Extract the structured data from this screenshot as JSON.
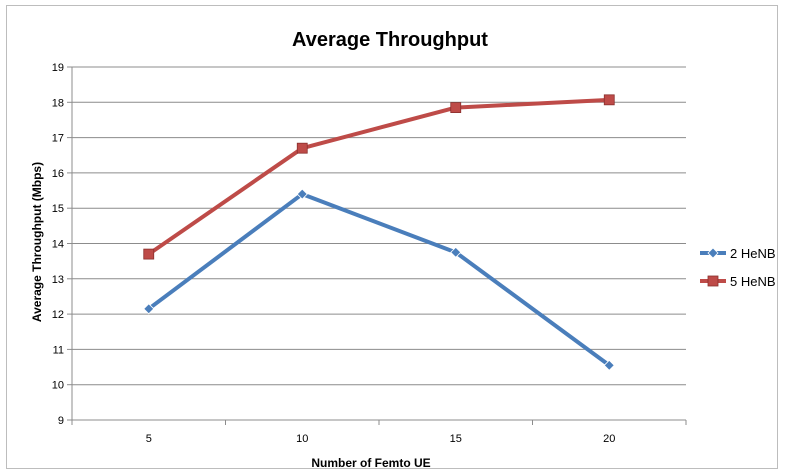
{
  "chart_data": {
    "type": "line",
    "title": "Average Throughput",
    "xlabel": "Number of Femto UE",
    "ylabel": "Average Throughput  (Mbps)",
    "categories": [
      "5",
      "10",
      "15",
      "20"
    ],
    "x": [
      5,
      10,
      15,
      20
    ],
    "ylim": [
      9,
      19
    ],
    "yticks": [
      9,
      10,
      11,
      12,
      13,
      14,
      15,
      16,
      17,
      18,
      19
    ],
    "grid": true,
    "legend": "right",
    "series": [
      {
        "name": "2 HeNB",
        "color": "#4a7ebb",
        "marker": "diamond",
        "values": [
          12.15,
          15.4,
          13.75,
          10.55
        ]
      },
      {
        "name": "5 HeNB",
        "color": "#be4b48",
        "marker": "square",
        "values": [
          13.7,
          16.7,
          17.85,
          18.07
        ]
      }
    ]
  }
}
